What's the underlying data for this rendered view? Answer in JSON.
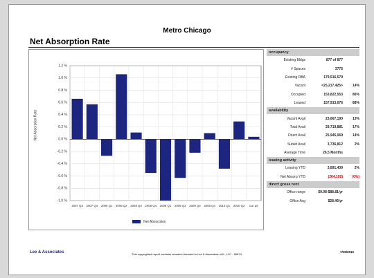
{
  "header": {
    "title": "Metro Chicago",
    "subtitle": "Net Absorption Rate"
  },
  "chart_data": {
    "type": "bar",
    "y_label": "Net Absorption Rate",
    "legend": "Net Absorption",
    "color": "#1c2580",
    "grid": true,
    "categories": [
      "2007 Q3",
      "2007 Q4",
      "2008 Q1",
      "2008 Q2",
      "2008 Q3",
      "2008 Q4",
      "2009 Q1",
      "2009 Q2",
      "2009 Q3",
      "2009 Q4",
      "2010 Q1",
      "2010 Q2",
      "Cur qtr"
    ],
    "values": [
      0.66,
      0.57,
      -0.27,
      1.06,
      0.11,
      -0.55,
      -1.0,
      -0.63,
      -0.22,
      0.1,
      -0.48,
      0.29,
      0.04
    ],
    "ylim": [
      -1.0,
      1.2
    ],
    "yticks": [
      {
        "value": -1.0,
        "label": "-1.0 %"
      },
      {
        "value": -0.8,
        "label": "-0.8 %"
      },
      {
        "value": -0.6,
        "label": "-0.6 %"
      },
      {
        "value": -0.4,
        "label": "-0.4 %"
      },
      {
        "value": -0.2,
        "label": "-0.2 %"
      },
      {
        "value": 0,
        "label": "0.0 %"
      },
      {
        "value": 0.2,
        "label": "0.2 %"
      },
      {
        "value": 0.4,
        "label": "0.4 %"
      },
      {
        "value": 0.6,
        "label": "0.6 %"
      },
      {
        "value": 0.8,
        "label": "0.8 %"
      },
      {
        "value": 1.0,
        "label": "1.0 %"
      },
      {
        "value": 1.2,
        "label": "1.2 %"
      }
    ]
  },
  "table": {
    "sections": [
      {
        "title": "occupancy",
        "rows": [
          {
            "cells": [
              "Existing Bldgs",
              "877 of 877"
            ]
          },
          {
            "cells": [
              "# Spaces",
              "3775"
            ]
          },
          {
            "cells": [
              "Existing RBA",
              "179,516,579"
            ]
          },
          {
            "cells": [
              "Vacant",
              "<25,217,425>",
              "14%"
            ]
          },
          {
            "cells": [
              "Occupied",
              "153,822,553",
              "86%"
            ]
          },
          {
            "cells": [
              "Leased",
              "157,913,676",
              "88%"
            ]
          }
        ]
      },
      {
        "title": "availability",
        "rows": [
          {
            "cells": [
              "Vacant Avail",
              "23,667,190",
              "13%"
            ]
          },
          {
            "cells": [
              "Total Avail",
              "29,719,881",
              "17%"
            ]
          },
          {
            "cells": [
              "Direct Avail",
              "25,945,069",
              "14%"
            ]
          },
          {
            "cells": [
              "Sublet Avail",
              "3,736,812",
              "2%"
            ]
          },
          {
            "cells": [
              "Average Time",
              "26.5 Months"
            ]
          }
        ]
      },
      {
        "title": "leasing activity",
        "rows": [
          {
            "cells": [
              "Leasing YTD",
              "3,891,439",
              "2%"
            ]
          },
          {
            "cells": [
              "Net Absorp YTD",
              "(264,192)",
              "(0%)"
            ],
            "color": "#cc0000"
          }
        ]
      },
      {
        "title": "direct gross rent",
        "rows": [
          {
            "cells": [
              "Office range",
              "$9.08-$88.81/yr"
            ]
          },
          {
            "cells": [
              "Office Avg",
              "$28.46/yr"
            ]
          }
        ]
      }
    ]
  },
  "footer": {
    "logo": "Lee & Associates",
    "notice": "This copyrighted report contains research licensed to Lee & Associates of IL, LLC - 50874.",
    "date": "7/19/2010"
  }
}
